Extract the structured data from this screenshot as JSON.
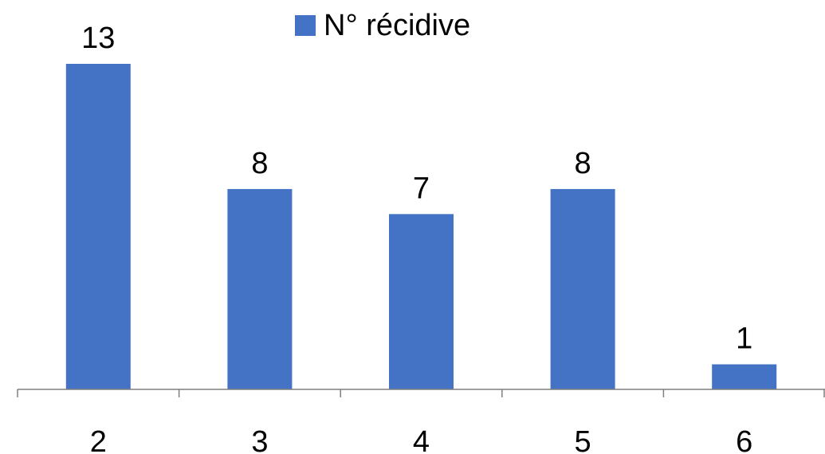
{
  "chart_data": {
    "type": "bar",
    "categories": [
      "2",
      "3",
      "4",
      "5",
      "6"
    ],
    "series": [
      {
        "name": "N° récidive",
        "values": [
          13,
          8,
          7,
          8,
          1
        ]
      }
    ],
    "data_labels": [
      "13",
      "8",
      "7",
      "8",
      "1"
    ],
    "ylim": [
      0,
      13
    ],
    "grid": false,
    "y_axis_visible": false,
    "legend_position": "top-center",
    "colors": {
      "bar": "#4472C4",
      "axis": "#7F7F7F",
      "text": "#000000"
    }
  }
}
